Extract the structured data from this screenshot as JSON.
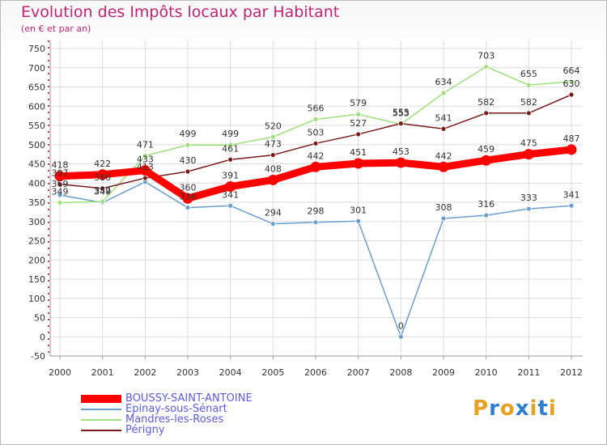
{
  "chart_data": {
    "type": "line",
    "title": "Evolution des Impôts locaux par Habitant",
    "subtitle": "(en € et par an)",
    "xlabel": "",
    "ylabel": "",
    "categories": [
      "2000",
      "2001",
      "2002",
      "2003",
      "2004",
      "2005",
      "2006",
      "2007",
      "2008",
      "2009",
      "2010",
      "2011",
      "2012"
    ],
    "ylim": [
      -50,
      750
    ],
    "yticks": [
      -50,
      0,
      50,
      100,
      150,
      200,
      250,
      300,
      350,
      400,
      450,
      500,
      550,
      600,
      650,
      700,
      750
    ],
    "grid": true,
    "legend_position": "bottom-left",
    "series": [
      {
        "name": "Epinay-sous-Sénart",
        "color": "#6a9ecf",
        "emphasis": false,
        "values": [
          369,
          349,
          403,
          336,
          341,
          294,
          298,
          301,
          0,
          308,
          316,
          333,
          341
        ],
        "labels": [
          "369",
          "349",
          "",
          "336",
          "341",
          "294",
          "298",
          "301",
          "0",
          "308",
          "316",
          "333",
          "341"
        ]
      },
      {
        "name": "Mandres-les-Roses",
        "color": "#9ee07a",
        "emphasis": false,
        "values": [
          349,
          352,
          471,
          499,
          499,
          520,
          566,
          579,
          553,
          634,
          703,
          655,
          664
        ],
        "labels": [
          "349",
          "352",
          "471",
          "499",
          "499",
          "520",
          "566",
          "579",
          "553",
          "634",
          "703",
          "655",
          "664"
        ]
      },
      {
        "name": "Périgny",
        "color": "#7a1a1a",
        "emphasis": false,
        "values": [
          397,
          386,
          413,
          430,
          461,
          473,
          503,
          527,
          555,
          541,
          582,
          582,
          630
        ],
        "labels": [
          "397",
          "386",
          "413",
          "430",
          "461",
          "473",
          "503",
          "527",
          "555",
          "541",
          "582",
          "582",
          "630"
        ]
      },
      {
        "name": "BOUSSY-SAINT-ANTOINE",
        "color": "#ff0000",
        "emphasis": true,
        "values": [
          418,
          422,
          433,
          360,
          391,
          408,
          442,
          451,
          453,
          442,
          459,
          475,
          487
        ],
        "labels": [
          "418",
          "422",
          "433",
          "360",
          "391",
          "408",
          "442",
          "451",
          "453",
          "442",
          "459",
          "475",
          "487"
        ]
      }
    ]
  },
  "legend": {
    "items": [
      {
        "label": "BOUSSY-SAINT-ANTOINE",
        "color": "#ff0000",
        "thick": true
      },
      {
        "label": "Epinay-sous-Sénart",
        "color": "#6a9ecf",
        "thick": false
      },
      {
        "label": "Mandres-les-Roses",
        "color": "#9ee07a",
        "thick": false
      },
      {
        "label": "Périgny",
        "color": "#7a1a1a",
        "thick": false
      }
    ]
  },
  "logo": {
    "letters": [
      {
        "text": "P",
        "color": "#e8a020"
      },
      {
        "text": "r",
        "color": "#2e7fd0"
      },
      {
        "text": "o",
        "color": "#e8a020"
      },
      {
        "text": "x",
        "color": "#2e7fd0"
      },
      {
        "text": "i",
        "color": "#e8a020"
      },
      {
        "text": "t",
        "color": "#2e7fd0"
      },
      {
        "text": "i",
        "color": "#e8a020"
      }
    ]
  }
}
